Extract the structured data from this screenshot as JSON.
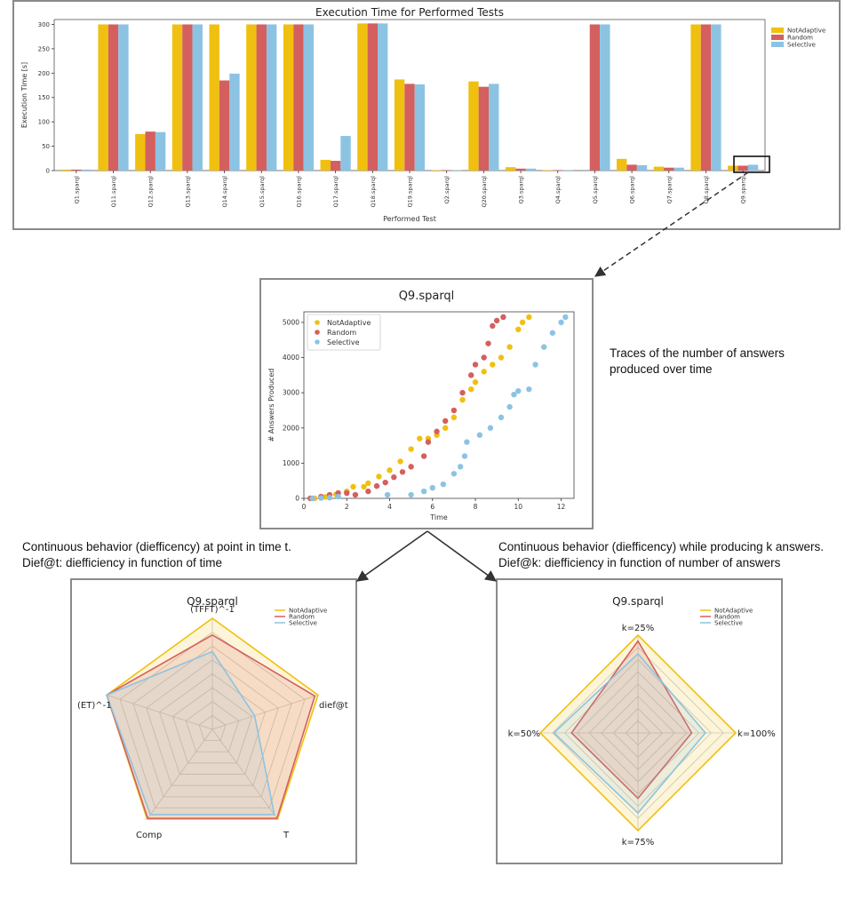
{
  "colors": {
    "notadaptive": "#f0c010",
    "random": "#d45f5f",
    "selective": "#8cc3e3",
    "frame": "#8a8a8a"
  },
  "captions": {
    "traces": [
      "Traces of the number of answers",
      "produced over time"
    ],
    "dieft": [
      "Continuous behavior (diefficency) at point in time t.",
      "Dief@t: diefficiency in function of time"
    ],
    "diefk": [
      "Continuous behavior (diefficency) while producing k answers.",
      "Dief@k: diefficiency in function of number of answers"
    ]
  },
  "chart_data": [
    {
      "type": "bar",
      "title": "Execution Time for Performed Tests",
      "xlabel": "Performed Test",
      "ylabel": "Execution Time [s]",
      "ylim": [
        0,
        310
      ],
      "yticks": [
        0,
        50,
        100,
        150,
        200,
        250,
        300
      ],
      "legend_position": "outside-top-right",
      "categories": [
        "Q1.sparql",
        "Q11.sparql",
        "Q12.sparql",
        "Q13.sparql",
        "Q14.sparql",
        "Q15.sparql",
        "Q16.sparql",
        "Q17.sparql",
        "Q18.sparql",
        "Q19.sparql",
        "Q2.sparql",
        "Q20.sparql",
        "Q3.sparql",
        "Q4.sparql",
        "Q5.sparql",
        "Q6.sparql",
        "Q7.sparql",
        "Q8.sparql",
        "Q9.sparql"
      ],
      "series": [
        {
          "name": "NotAdaptive",
          "values": [
            2,
            300,
            75,
            300,
            300,
            300,
            300,
            22,
            302,
            187,
            1,
            183,
            7,
            1,
            0,
            24,
            8,
            300,
            10
          ]
        },
        {
          "name": "Random",
          "values": [
            2,
            300,
            80,
            300,
            185,
            300,
            300,
            20,
            302,
            178,
            1,
            172,
            4,
            1,
            300,
            12,
            6,
            300,
            10
          ]
        },
        {
          "name": "Selective",
          "values": [
            2,
            300,
            79,
            300,
            199,
            300,
            300,
            71,
            302,
            177,
            1,
            178,
            4,
            1,
            300,
            11,
            6,
            300,
            12
          ]
        }
      ]
    },
    {
      "type": "scatter",
      "title": "Q9.sparql",
      "xlabel": "Time",
      "ylabel": "# Answers Produced",
      "xlim": [
        0,
        12.6
      ],
      "ylim": [
        0,
        5300
      ],
      "xticks": [
        0,
        2,
        4,
        6,
        8,
        10,
        12
      ],
      "yticks": [
        0,
        1000,
        2000,
        3000,
        4000,
        5000
      ],
      "legend_position": "top-left",
      "series": [
        {
          "name": "NotAdaptive",
          "points": [
            [
              0.5,
              0
            ],
            [
              1.0,
              40
            ],
            [
              1.5,
              110
            ],
            [
              2.0,
              200
            ],
            [
              2.3,
              330
            ],
            [
              2.8,
              330
            ],
            [
              3.0,
              430
            ],
            [
              3.5,
              620
            ],
            [
              4.0,
              800
            ],
            [
              4.5,
              1050
            ],
            [
              5.0,
              1400
            ],
            [
              5.4,
              1700
            ],
            [
              5.8,
              1700
            ],
            [
              6.2,
              1800
            ],
            [
              6.6,
              2000
            ],
            [
              7.0,
              2300
            ],
            [
              7.4,
              2800
            ],
            [
              7.8,
              3100
            ],
            [
              8.0,
              3300
            ],
            [
              8.4,
              3600
            ],
            [
              8.8,
              3800
            ],
            [
              9.2,
              4000
            ],
            [
              9.6,
              4300
            ],
            [
              10.0,
              4800
            ],
            [
              10.2,
              5000
            ],
            [
              10.5,
              5150
            ]
          ]
        },
        {
          "name": "Random",
          "points": [
            [
              0.3,
              0
            ],
            [
              0.8,
              50
            ],
            [
              1.2,
              100
            ],
            [
              1.6,
              150
            ],
            [
              2.0,
              150
            ],
            [
              2.4,
              100
            ],
            [
              3.0,
              200
            ],
            [
              3.4,
              350
            ],
            [
              3.8,
              450
            ],
            [
              4.2,
              600
            ],
            [
              4.6,
              750
            ],
            [
              5.0,
              900
            ],
            [
              5.6,
              1200
            ],
            [
              5.8,
              1600
            ],
            [
              6.2,
              1900
            ],
            [
              6.6,
              2200
            ],
            [
              7.0,
              2500
            ],
            [
              7.4,
              3000
            ],
            [
              7.8,
              3500
            ],
            [
              8.0,
              3800
            ],
            [
              8.4,
              4000
            ],
            [
              8.6,
              4400
            ],
            [
              8.8,
              4900
            ],
            [
              9.0,
              5050
            ],
            [
              9.3,
              5150
            ]
          ]
        },
        {
          "name": "Selective",
          "points": [
            [
              0.4,
              0
            ],
            [
              0.8,
              10
            ],
            [
              1.2,
              20
            ],
            [
              1.6,
              50
            ],
            [
              3.9,
              100
            ],
            [
              5.0,
              100
            ],
            [
              5.6,
              200
            ],
            [
              6.0,
              300
            ],
            [
              6.5,
              400
            ],
            [
              7.0,
              700
            ],
            [
              7.3,
              900
            ],
            [
              7.5,
              1200
            ],
            [
              7.6,
              1600
            ],
            [
              8.2,
              1800
            ],
            [
              8.7,
              2000
            ],
            [
              9.2,
              2300
            ],
            [
              9.6,
              2600
            ],
            [
              9.8,
              2950
            ],
            [
              10.0,
              3050
            ],
            [
              10.5,
              3100
            ],
            [
              10.8,
              3800
            ],
            [
              11.2,
              4300
            ],
            [
              11.6,
              4700
            ],
            [
              12.0,
              5000
            ],
            [
              12.2,
              5150
            ]
          ]
        }
      ]
    },
    {
      "type": "radar",
      "title": "Q9.sparql",
      "axes": [
        "(TFFT)^-1",
        "dief@t",
        "T",
        "Comp",
        "(ET)^-1"
      ],
      "rmax": 1,
      "legend_position": "top-right",
      "series": [
        {
          "name": "NotAdaptive",
          "values": [
            1.0,
            1.0,
            1.0,
            1.0,
            1.0
          ]
        },
        {
          "name": "Random",
          "values": [
            0.85,
            0.97,
            0.99,
            0.99,
            1.0
          ]
        },
        {
          "name": "Selective",
          "values": [
            0.7,
            0.4,
            0.95,
            0.95,
            1.0
          ]
        }
      ]
    },
    {
      "type": "radar",
      "title": "Q9.sparql",
      "axes": [
        "k=25%",
        "k=100%",
        "k=75%",
        "k=50%"
      ],
      "rmax": 1,
      "legend_position": "top-right",
      "series": [
        {
          "name": "NotAdaptive",
          "values": [
            1.0,
            1.0,
            1.0,
            1.0
          ]
        },
        {
          "name": "Random",
          "values": [
            0.94,
            0.55,
            0.67,
            0.68
          ]
        },
        {
          "name": "Selective",
          "values": [
            0.81,
            0.69,
            0.82,
            0.86
          ]
        }
      ]
    }
  ]
}
